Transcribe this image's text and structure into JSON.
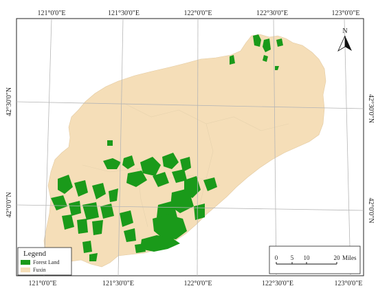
{
  "coordinates": {
    "top": [
      "121°0'0\"E",
      "121°30'0\"E",
      "122°0'0\"E",
      "122°30'0\"E",
      "123°0'0\"E"
    ],
    "bottom": [
      "121°0'0\"E",
      "121°30'0\"E",
      "122°0'0\"E",
      "122°30'0\"E",
      "123°0'0\"E"
    ],
    "left": [
      "42°30'0\"N",
      "42°0'0\"N"
    ],
    "right": [
      "42°30'0\"N",
      "42°0'0\"N"
    ]
  },
  "north_arrow": {
    "label": "N"
  },
  "legend": {
    "title": "Legend",
    "items": [
      {
        "label": "Forest Land",
        "color": "#1a9a1a"
      },
      {
        "label": "Fuxin",
        "color": "#f5deb8"
      }
    ]
  },
  "scale_bar": {
    "ticks": [
      "0",
      "5",
      "10",
      "20"
    ],
    "unit": "Miles"
  },
  "colors": {
    "land": "#f5deb8",
    "forest": "#1a9a1a",
    "graticule": "#b5b5b5",
    "frame": "#222222"
  }
}
